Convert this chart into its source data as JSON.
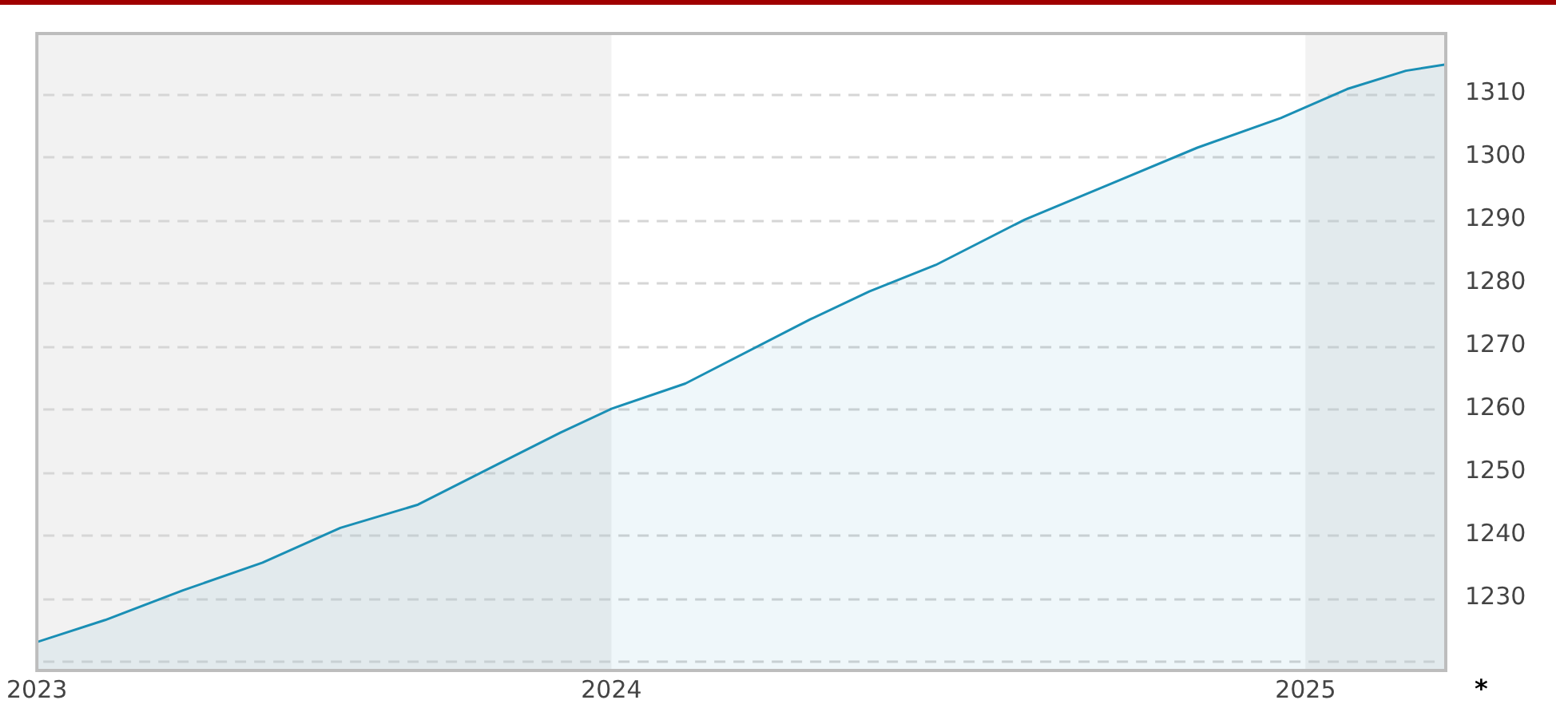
{
  "chart_data": {
    "type": "area",
    "x": [
      "2023-03-04",
      "2023-04-09",
      "2023-05-20",
      "2023-07-01",
      "2023-08-11",
      "2023-09-21",
      "2023-11-02",
      "2023-12-05",
      "2024-01-01",
      "2024-02-09",
      "2024-04-15",
      "2024-05-16",
      "2024-06-20",
      "2024-08-06",
      "2024-09-19",
      "2024-11-05",
      "2024-12-19",
      "2025-01-23",
      "2025-02-23",
      "2025-03-16"
    ],
    "values": [
      1223.0,
      1226.5,
      1231.2,
      1235.6,
      1241.1,
      1244.8,
      1251.2,
      1256.2,
      1260.0,
      1264.0,
      1274.2,
      1278.6,
      1282.8,
      1290.0,
      1295.5,
      1301.4,
      1306.1,
      1310.7,
      1313.6,
      1314.6
    ],
    "color": "#1a8fb5",
    "xlim": [
      "2023-03-04",
      "2025-03-16"
    ],
    "xticks": [
      {
        "value": "2023-03-04",
        "label": "2023"
      },
      {
        "value": "2024-01-01",
        "label": "2024"
      },
      {
        "value": "2025-01-01",
        "label": "2025"
      }
    ],
    "ylim": [
      1218.5,
      1319.5
    ],
    "yticks": [
      {
        "value": 1220,
        "label": null
      },
      1230,
      1240,
      1250,
      1260,
      1270,
      1280,
      1290,
      1300,
      1310
    ],
    "grid": "y",
    "marker": "none",
    "bands": [
      {
        "axis": "x",
        "from": "2023-03-04",
        "to": "2024-01-01",
        "color": "#f2f2f2"
      },
      {
        "axis": "x",
        "from": "2025-01-01",
        "to": "2025-03-16",
        "color": "#f2f2f2"
      }
    ],
    "annotations": [
      "*"
    ]
  }
}
